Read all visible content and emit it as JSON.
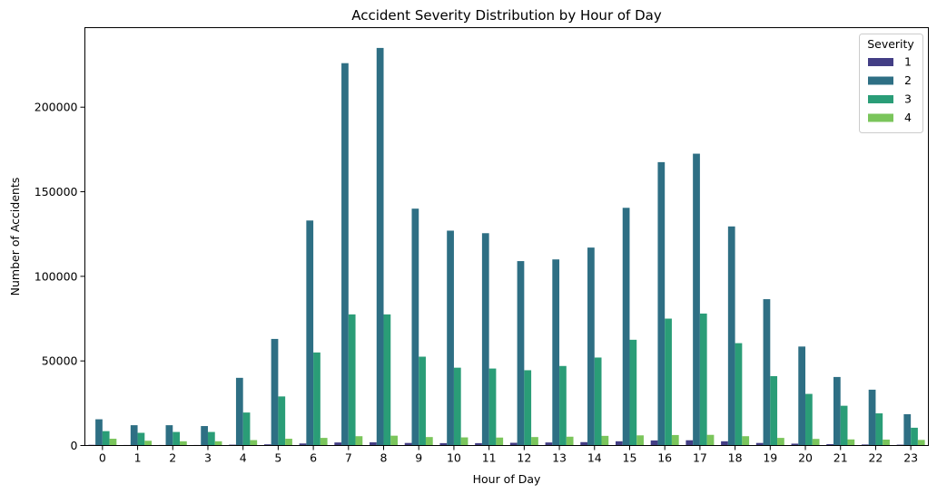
{
  "chart_data": {
    "type": "bar",
    "title": "Accident Severity Distribution by Hour of Day",
    "xlabel": "Hour of Day",
    "ylabel": "Number of Accidents",
    "categories": [
      "0",
      "1",
      "2",
      "3",
      "4",
      "5",
      "6",
      "7",
      "8",
      "9",
      "10",
      "11",
      "12",
      "13",
      "14",
      "15",
      "16",
      "17",
      "18",
      "19",
      "20",
      "21",
      "22",
      "23"
    ],
    "ylim": [
      0,
      247000
    ],
    "yticks": [
      0,
      50000,
      100000,
      150000,
      200000
    ],
    "ytick_labels": [
      "0",
      "50000",
      "100000",
      "150000",
      "200000"
    ],
    "grid": false,
    "legend": {
      "title": "Severity",
      "placement": "top-right"
    },
    "series": [
      {
        "name": "1",
        "color": "#433e85",
        "values": [
          400,
          300,
          300,
          300,
          500,
          700,
          1200,
          1800,
          1900,
          1500,
          1400,
          1400,
          1600,
          1800,
          2000,
          2500,
          3000,
          3100,
          2500,
          1500,
          1100,
          800,
          600,
          500
        ]
      },
      {
        "name": "2",
        "color": "#2e6f84",
        "values": [
          15500,
          12000,
          12000,
          11500,
          40000,
          63000,
          133000,
          226000,
          235000,
          140000,
          127000,
          125500,
          109000,
          110000,
          117000,
          140500,
          167500,
          172500,
          129500,
          86500,
          58500,
          40500,
          33000,
          18500
        ]
      },
      {
        "name": "3",
        "color": "#2a9d77",
        "values": [
          8500,
          7500,
          8000,
          8000,
          19500,
          29000,
          55000,
          77500,
          77500,
          52500,
          46000,
          45500,
          44500,
          47000,
          52000,
          62500,
          75000,
          78000,
          60500,
          41000,
          30500,
          23500,
          19000,
          10500
        ]
      },
      {
        "name": "4",
        "color": "#7ac55b",
        "values": [
          4000,
          2800,
          2500,
          2500,
          3200,
          4000,
          4500,
          5500,
          5800,
          5000,
          4800,
          4700,
          5000,
          5200,
          5700,
          6000,
          6200,
          6300,
          5500,
          4500,
          3900,
          3600,
          3500,
          3300
        ]
      }
    ]
  }
}
